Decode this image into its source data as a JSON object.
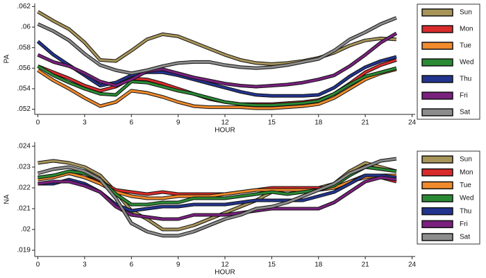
{
  "chart_data": [
    {
      "type": "line",
      "y_label": "PA",
      "x_label": "HOUR",
      "legend": "right",
      "x": [
        0,
        1,
        2,
        3,
        4,
        5,
        6,
        7,
        8,
        9,
        10,
        11,
        12,
        13,
        14,
        15,
        16,
        17,
        18,
        19,
        20,
        21,
        22,
        23
      ],
      "xlim": [
        -0.2,
        24.2
      ],
      "xticks": [
        0,
        3,
        6,
        9,
        12,
        15,
        18,
        21,
        24
      ],
      "ylim": [
        0.0515,
        0.0623
      ],
      "yticks": [
        {
          "value": 0.052,
          "label": ".052"
        },
        {
          "value": 0.054,
          "label": ".054"
        },
        {
          "value": 0.056,
          "label": ".056"
        },
        {
          "value": 0.058,
          "label": ".058"
        },
        {
          "value": 0.06,
          "label": ".06"
        },
        {
          "value": 0.062,
          "label": ".062"
        }
      ],
      "series": [
        {
          "name": "Sun",
          "color": "#a8955a",
          "values": [
            0.0615,
            0.0606,
            0.0598,
            0.0585,
            0.0568,
            0.0567,
            0.0577,
            0.0588,
            0.0593,
            0.0591,
            0.0585,
            0.0579,
            0.0573,
            0.0568,
            0.0565,
            0.0564,
            0.0565,
            0.0567,
            0.057,
            0.0575,
            0.0582,
            0.0587,
            0.0589,
            0.0588
          ]
        },
        {
          "name": "Mon",
          "color": "#d92b2b",
          "values": [
            0.0562,
            0.0556,
            0.055,
            0.0543,
            0.0538,
            0.0542,
            0.055,
            0.0549,
            0.0545,
            0.054,
            0.0535,
            0.053,
            0.0527,
            0.0525,
            0.0525,
            0.0525,
            0.0526,
            0.0527,
            0.0529,
            0.0535,
            0.0545,
            0.0556,
            0.0563,
            0.0568
          ]
        },
        {
          "name": "Tue",
          "color": "#f08a2c",
          "values": [
            0.0558,
            0.0548,
            0.054,
            0.0531,
            0.0523,
            0.0527,
            0.0538,
            0.0536,
            0.0532,
            0.0527,
            0.0523,
            0.0522,
            0.0522,
            0.0522,
            0.0521,
            0.0521,
            0.0522,
            0.0523,
            0.0525,
            0.0531,
            0.054,
            0.0549,
            0.0555,
            0.0559
          ]
        },
        {
          "name": "Wed",
          "color": "#2a8a34",
          "values": [
            0.0562,
            0.0553,
            0.0546,
            0.054,
            0.0535,
            0.0534,
            0.0547,
            0.0546,
            0.0542,
            0.0538,
            0.0535,
            0.0531,
            0.0527,
            0.0525,
            0.0524,
            0.0524,
            0.0525,
            0.0526,
            0.0528,
            0.0535,
            0.0544,
            0.0552,
            0.0556,
            0.056
          ]
        },
        {
          "name": "Thu",
          "color": "#23348f",
          "values": [
            0.0586,
            0.0573,
            0.0563,
            0.0553,
            0.0543,
            0.0546,
            0.0553,
            0.0556,
            0.0556,
            0.0553,
            0.0549,
            0.0545,
            0.0541,
            0.0537,
            0.0534,
            0.0533,
            0.0533,
            0.0533,
            0.0534,
            0.0541,
            0.0552,
            0.0561,
            0.0567,
            0.0571
          ]
        },
        {
          "name": "Fri",
          "color": "#7a217e",
          "values": [
            0.0573,
            0.0566,
            0.0562,
            0.0555,
            0.0547,
            0.0543,
            0.0549,
            0.0557,
            0.0559,
            0.0555,
            0.0551,
            0.0548,
            0.0545,
            0.0543,
            0.0542,
            0.0543,
            0.0544,
            0.0546,
            0.0549,
            0.0553,
            0.0562,
            0.0573,
            0.0585,
            0.0594
          ]
        },
        {
          "name": "Sat",
          "color": "#8c8c8c",
          "values": [
            0.0603,
            0.0596,
            0.0587,
            0.0574,
            0.0563,
            0.0558,
            0.0555,
            0.0558,
            0.0562,
            0.0565,
            0.0566,
            0.0566,
            0.0563,
            0.0561,
            0.056,
            0.0561,
            0.0563,
            0.0566,
            0.0569,
            0.0577,
            0.0588,
            0.0595,
            0.0603,
            0.0609
          ]
        }
      ]
    },
    {
      "type": "line",
      "y_label": "NA",
      "x_label": "HOUR",
      "legend": "right",
      "x": [
        0,
        1,
        2,
        3,
        4,
        5,
        6,
        7,
        8,
        9,
        10,
        11,
        12,
        13,
        14,
        15,
        16,
        17,
        18,
        19,
        20,
        21,
        22,
        23
      ],
      "xlim": [
        -0.2,
        24.2
      ],
      "xticks": [
        0,
        3,
        6,
        9,
        12,
        15,
        18,
        21,
        24
      ],
      "ylim": [
        0.0187,
        0.0242
      ],
      "yticks": [
        {
          "value": 0.019,
          "label": ".019"
        },
        {
          "value": 0.02,
          "label": ".02"
        },
        {
          "value": 0.021,
          "label": ".021"
        },
        {
          "value": 0.022,
          "label": ".022"
        },
        {
          "value": 0.023,
          "label": ".023"
        },
        {
          "value": 0.024,
          "label": ".024"
        }
      ],
      "series": [
        {
          "name": "Sun",
          "color": "#a8955a",
          "values": [
            0.0232,
            0.0233,
            0.0232,
            0.023,
            0.0226,
            0.0218,
            0.0209,
            0.0205,
            0.02,
            0.02,
            0.0202,
            0.0205,
            0.0208,
            0.0211,
            0.0214,
            0.0218,
            0.022,
            0.0219,
            0.022,
            0.0222,
            0.0228,
            0.0232,
            0.023,
            0.0228
          ]
        },
        {
          "name": "Mon",
          "color": "#d92b2b",
          "values": [
            0.0225,
            0.0226,
            0.0227,
            0.0225,
            0.0223,
            0.0219,
            0.0218,
            0.0217,
            0.0218,
            0.0217,
            0.0217,
            0.0217,
            0.0217,
            0.0218,
            0.0219,
            0.022,
            0.022,
            0.022,
            0.022,
            0.022,
            0.0223,
            0.0226,
            0.0225,
            0.0223
          ]
        },
        {
          "name": "Tue",
          "color": "#f08a2c",
          "values": [
            0.0224,
            0.0225,
            0.0227,
            0.0225,
            0.0222,
            0.0218,
            0.0216,
            0.0215,
            0.0215,
            0.0216,
            0.0216,
            0.0216,
            0.0217,
            0.0218,
            0.0219,
            0.0219,
            0.0219,
            0.0219,
            0.0219,
            0.022,
            0.0223,
            0.0225,
            0.0226,
            0.0226
          ]
        },
        {
          "name": "Wed",
          "color": "#2a8a34",
          "values": [
            0.0225,
            0.0226,
            0.0228,
            0.0227,
            0.0224,
            0.0217,
            0.0212,
            0.0212,
            0.0213,
            0.0213,
            0.0215,
            0.0215,
            0.0215,
            0.0216,
            0.0217,
            0.0218,
            0.0217,
            0.0218,
            0.0219,
            0.0221,
            0.0226,
            0.023,
            0.0229,
            0.0228
          ]
        },
        {
          "name": "Thu",
          "color": "#23348f",
          "values": [
            0.0222,
            0.0222,
            0.0224,
            0.0222,
            0.0218,
            0.0212,
            0.0209,
            0.021,
            0.0211,
            0.0211,
            0.0212,
            0.0212,
            0.0212,
            0.0213,
            0.0214,
            0.0214,
            0.0214,
            0.0214,
            0.0216,
            0.0218,
            0.0222,
            0.0226,
            0.0226,
            0.0225
          ]
        },
        {
          "name": "Fri",
          "color": "#7a217e",
          "values": [
            0.0222,
            0.0223,
            0.0223,
            0.0221,
            0.0218,
            0.0211,
            0.0207,
            0.0206,
            0.0205,
            0.0205,
            0.0207,
            0.0207,
            0.0207,
            0.0208,
            0.0209,
            0.021,
            0.021,
            0.021,
            0.021,
            0.0213,
            0.0218,
            0.0223,
            0.0225,
            0.0224
          ]
        },
        {
          "name": "Sat",
          "color": "#8c8c8c",
          "values": [
            0.0227,
            0.0229,
            0.023,
            0.0228,
            0.0224,
            0.0215,
            0.0203,
            0.0199,
            0.0197,
            0.0197,
            0.0199,
            0.0202,
            0.0205,
            0.0207,
            0.021,
            0.0211,
            0.0213,
            0.0216,
            0.0219,
            0.0222,
            0.0227,
            0.023,
            0.0233,
            0.0234
          ]
        }
      ]
    }
  ]
}
